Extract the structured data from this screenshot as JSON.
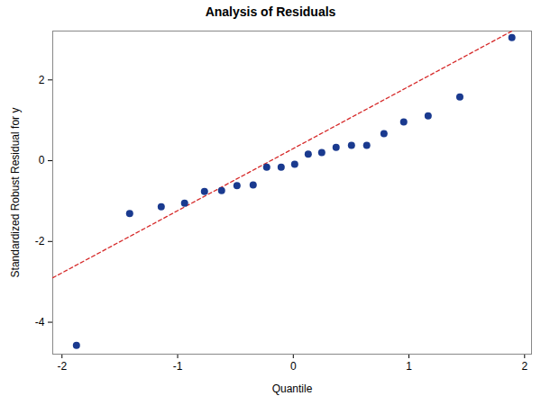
{
  "chart_data": {
    "type": "scatter",
    "title": "Analysis of Residuals",
    "x_label": "Quantile",
    "y_label": "Standardized Robust Residual for y",
    "x": [
      -1.875,
      -1.415,
      -1.142,
      -0.94,
      -0.768,
      -0.62,
      -0.487,
      -0.347,
      -0.23,
      -0.105,
      0.012,
      0.129,
      0.246,
      0.37,
      0.503,
      0.635,
      0.784,
      0.955,
      1.166,
      1.44,
      1.89
    ],
    "values": [
      -4.57,
      -1.31,
      -1.14,
      -1.05,
      -0.76,
      -0.74,
      -0.62,
      -0.6,
      -0.16,
      -0.16,
      -0.09,
      0.16,
      0.2,
      0.33,
      0.38,
      0.38,
      0.67,
      0.96,
      1.11,
      1.58,
      3.05
    ],
    "color": "#1a3a8f",
    "marker": "circle",
    "reference_line": {
      "x": [
        -2.08,
        2.06
      ],
      "y": [
        -2.9,
        3.47
      ],
      "color": "#d62a2a",
      "line_style": "dashed"
    },
    "xlim": [
      -2.08,
      2.06
    ],
    "ylim": [
      -4.79,
      3.21
    ],
    "xticks": [
      -2,
      -1,
      0,
      1,
      2
    ],
    "yticks": [
      -4,
      -2,
      0,
      2
    ],
    "grid": false
  }
}
